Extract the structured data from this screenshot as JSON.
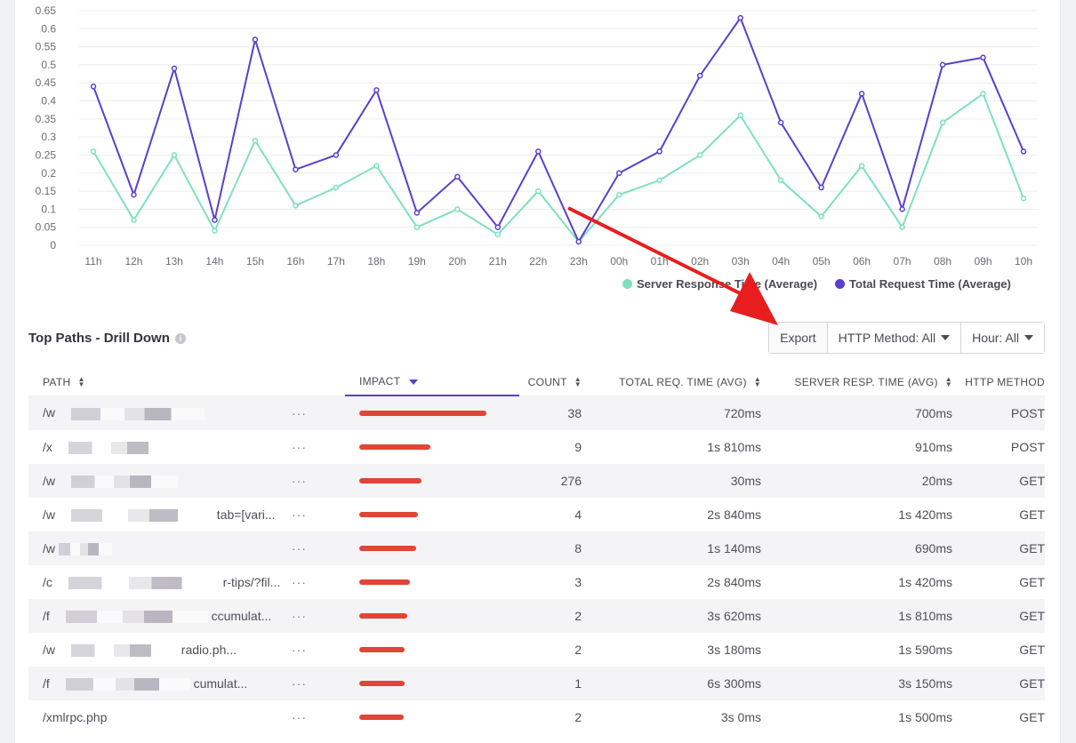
{
  "chart_data": {
    "type": "line",
    "categories": [
      "11h",
      "12h",
      "13h",
      "14h",
      "15h",
      "16h",
      "17h",
      "18h",
      "19h",
      "20h",
      "21h",
      "22h",
      "23h",
      "00h",
      "01h",
      "02h",
      "03h",
      "04h",
      "05h",
      "06h",
      "07h",
      "08h",
      "09h",
      "10h"
    ],
    "series": [
      {
        "name": "Server Response Time (Average)",
        "color": "#7fe0bd",
        "values": [
          0.26,
          0.07,
          0.25,
          0.04,
          0.29,
          0.11,
          0.16,
          0.22,
          0.05,
          0.1,
          0.03,
          0.15,
          0.01,
          0.14,
          0.18,
          0.25,
          0.36,
          0.18,
          0.08,
          0.22,
          0.05,
          0.34,
          0.42,
          0.13
        ]
      },
      {
        "name": "Total Request Time (Average)",
        "color": "#5a3fce",
        "values": [
          0.44,
          0.14,
          0.49,
          0.07,
          0.57,
          0.21,
          0.25,
          0.43,
          0.09,
          0.19,
          0.05,
          0.26,
          0.01,
          0.2,
          0.26,
          0.47,
          0.63,
          0.34,
          0.16,
          0.42,
          0.1,
          0.5,
          0.52,
          0.26
        ]
      }
    ],
    "yticks": [
      "0",
      "0.05",
      "0.1",
      "0.15",
      "0.2",
      "0.25",
      "0.3",
      "0.35",
      "0.4",
      "0.45",
      "0.5",
      "0.55",
      "0.6",
      "0.65"
    ],
    "ylim": [
      0,
      0.65
    ],
    "grid": true,
    "legend": "bottom-right"
  },
  "section": {
    "title": "Top Paths - Drill Down",
    "info_icon": "info-icon"
  },
  "toolbar": {
    "export_label": "Export",
    "method_label": "HTTP Method: All",
    "hour_label": "Hour: All"
  },
  "table": {
    "headers": {
      "path": "PATH",
      "impact": "IMPACT",
      "count": "COUNT",
      "total": "TOTAL REQ. TIME (AVG)",
      "server": "SERVER RESP. TIME (AVG)",
      "method": "HTTP METHOD"
    },
    "more_label": "···",
    "rows": [
      {
        "path_start": "/w",
        "path_end": "",
        "impact": 1.0,
        "count": "38",
        "total": "720ms",
        "server": "700ms",
        "method": "POST"
      },
      {
        "path_start": "/x",
        "path_end": "",
        "impact": 0.56,
        "count": "9",
        "total": "1s 810ms",
        "server": "910ms",
        "method": "POST"
      },
      {
        "path_start": "/w",
        "path_end": "",
        "impact": 0.49,
        "count": "276",
        "total": "30ms",
        "server": "20ms",
        "method": "GET"
      },
      {
        "path_start": "/w",
        "path_end": "tab=[vari...",
        "impact": 0.46,
        "count": "4",
        "total": "2s 840ms",
        "server": "1s 420ms",
        "method": "GET"
      },
      {
        "path_start": "/w",
        "path_end": "",
        "impact": 0.45,
        "count": "8",
        "total": "1s 140ms",
        "server": "690ms",
        "method": "GET"
      },
      {
        "path_start": "/c",
        "path_end": "r-tips/?fil...",
        "impact": 0.4,
        "count": "3",
        "total": "2s 840ms",
        "server": "1s 420ms",
        "method": "GET"
      },
      {
        "path_start": "/f",
        "path_end": "ccumulat...",
        "impact": 0.38,
        "count": "2",
        "total": "3s 620ms",
        "server": "1s 810ms",
        "method": "GET"
      },
      {
        "path_start": "/w",
        "path_end": "radio.ph...",
        "impact": 0.36,
        "count": "2",
        "total": "3s 180ms",
        "server": "1s 590ms",
        "method": "GET"
      },
      {
        "path_start": "/f",
        "path_end": "cumulat...",
        "impact": 0.36,
        "count": "1",
        "total": "6s 300ms",
        "server": "3s 150ms",
        "method": "GET"
      },
      {
        "path_start": "/xmlrpc.php",
        "path_end": "",
        "impact": 0.35,
        "count": "2",
        "total": "3s 0ms",
        "server": "1s 500ms",
        "method": "GET"
      }
    ]
  },
  "annotation": {
    "arrow_color": "#e81e1e"
  }
}
